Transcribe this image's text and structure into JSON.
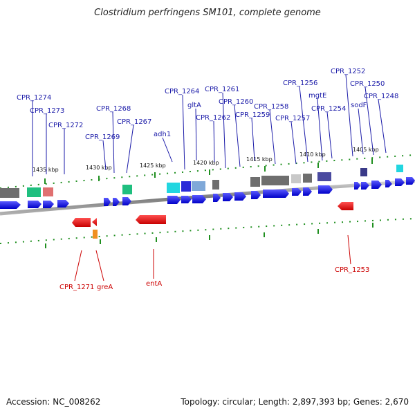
{
  "title": "Clostridium perfringens SM101, complete genome",
  "footer": {
    "accession": "Accession: NC_008262",
    "summary": "Topology: circular; Length: 2,897,393 bp; Genes: 2,670"
  },
  "ticks": [
    "1435 kbp",
    "1430 kbp",
    "1425 kbp",
    "1420 kbp",
    "1415 kbp",
    "1410 kbp",
    "1405 kbp"
  ],
  "genes_top": [
    "CPR_1274",
    "CPR_1273",
    "CPR_1272",
    "CPR_1268",
    "CPR_1269",
    "CPR_1267",
    "adh1",
    "CPR_1264",
    "gltA",
    "CPR_1261",
    "CPR_1262",
    "CPR_1260",
    "CPR_1259",
    "CPR_1258",
    "CPR_1256",
    "CPR_1257",
    "mgtE",
    "CPR_1254",
    "CPR_1252",
    "CPR_1250",
    "sodF",
    "CPR_1248"
  ],
  "genes_bottom": [
    "CPR_1271",
    "greA",
    "entA",
    "CPR_1253"
  ],
  "colors": {
    "forward_gene": "#1010e0",
    "reverse_gene": "#dd0000",
    "backbone": "#8a8a8a",
    "tick_mark": "#1f8f1f",
    "label_forward": "#1a1aa8",
    "label_reverse": "#cc0000"
  }
}
